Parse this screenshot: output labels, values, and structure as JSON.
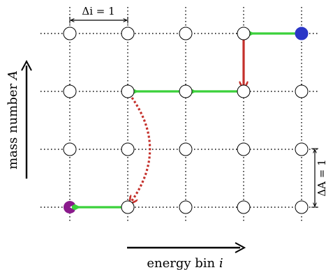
{
  "labels": {
    "x_axis": "energy bin",
    "x_axis_var": "i",
    "y_axis": "mass number",
    "y_axis_var": "A",
    "delta_i": "Δi = 1",
    "delta_A": "ΔA = 1"
  },
  "grid": {
    "columns": 5,
    "rows": 4
  },
  "colors": {
    "node_stroke": "#000000",
    "node_fill": "#ffffff",
    "grid_line": "#000000",
    "arrow_green": "#3bd13b",
    "arrow_red": "#c4302b",
    "start_node": "#2a36c7",
    "end_node": "#8a1a8c"
  },
  "highlighted_nodes": [
    {
      "col": 4,
      "row": 0,
      "role": "start",
      "color_key": "start_node"
    },
    {
      "col": 0,
      "row": 3,
      "role": "end",
      "color_key": "end_node"
    }
  ],
  "transitions": [
    {
      "type": "energy-loss",
      "color_key": "arrow_green",
      "from": [
        4,
        0
      ],
      "to": [
        3,
        0
      ]
    },
    {
      "type": "mass-loss",
      "color_key": "arrow_red",
      "from": [
        3,
        0
      ],
      "to": [
        3,
        1
      ]
    },
    {
      "type": "energy-loss",
      "color_key": "arrow_green",
      "from": [
        3,
        1
      ],
      "to": [
        2,
        1
      ]
    },
    {
      "type": "energy-loss",
      "color_key": "arrow_green",
      "from": [
        2,
        1
      ],
      "to": [
        1,
        1
      ]
    },
    {
      "type": "multi-mass-loss",
      "color_key": "arrow_red",
      "from": [
        1,
        1
      ],
      "to": [
        1,
        3
      ]
    },
    {
      "type": "energy-loss",
      "color_key": "arrow_green",
      "from": [
        1,
        3
      ],
      "to": [
        0,
        3
      ]
    }
  ]
}
